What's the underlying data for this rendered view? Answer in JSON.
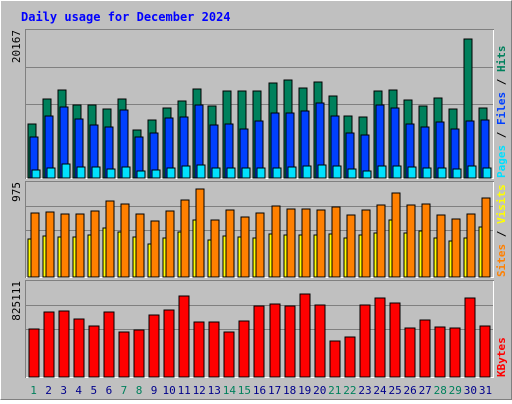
{
  "title": "Daily usage for December 2024",
  "colors": {
    "hits": "#00805c",
    "files": "#0040ff",
    "pages": "#00e0ff",
    "visits": "#ffff00",
    "sites": "#ff8000",
    "kbytes": "#ff0000",
    "background": "#c0c0c0",
    "label_normal": "#00008b",
    "label_weekend": "#00805c"
  },
  "panels": [
    {
      "id": "hits",
      "ymax_label": "20167",
      "ylim": [
        0,
        20167
      ],
      "side_labels": [
        {
          "text": "Pages",
          "color": "#00e0ff"
        },
        {
          "text": " / ",
          "color": "#000000"
        },
        {
          "text": "Files",
          "color": "#0040ff"
        },
        {
          "text": " / ",
          "color": "#000000"
        },
        {
          "text": "Hits",
          "color": "#00805c"
        }
      ]
    },
    {
      "id": "visits",
      "ymax_label": "975",
      "ylim": [
        0,
        975
      ],
      "side_labels": [
        {
          "text": "Sites",
          "color": "#ff8000"
        },
        {
          "text": " / ",
          "color": "#000000"
        },
        {
          "text": "Visits",
          "color": "#ffff00"
        }
      ]
    },
    {
      "id": "kbytes",
      "ymax_label": "825111",
      "ylim": [
        0,
        825111
      ],
      "side_labels": [
        {
          "text": "KBytes",
          "color": "#ff0000"
        }
      ]
    }
  ],
  "chart_data": {
    "type": "bar",
    "title": "Daily usage for December 2024",
    "categories": [
      "1",
      "2",
      "3",
      "4",
      "5",
      "6",
      "7",
      "8",
      "9",
      "10",
      "11",
      "12",
      "13",
      "14",
      "15",
      "16",
      "17",
      "18",
      "19",
      "20",
      "21",
      "22",
      "23",
      "24",
      "25",
      "26",
      "27",
      "28",
      "29",
      "30",
      "31"
    ],
    "weekend_days": [
      "1",
      "7",
      "8",
      "14",
      "15",
      "21",
      "22",
      "28",
      "29"
    ],
    "series": [
      {
        "name": "Hits",
        "panel": "hits",
        "values": [
          7300,
          10800,
          12000,
          10000,
          10000,
          9400,
          10800,
          6600,
          7900,
          9500,
          10500,
          12100,
          9800,
          11900,
          11900,
          11900,
          12900,
          13300,
          12300,
          13100,
          11200,
          8400,
          8300,
          11900,
          12000,
          10600,
          9800,
          10900,
          9400,
          19000,
          9500
        ]
      },
      {
        "name": "Files",
        "panel": "hits",
        "values": [
          5600,
          8400,
          9700,
          8000,
          7200,
          7000,
          9300,
          5600,
          6100,
          8200,
          8300,
          9900,
          7200,
          7400,
          6700,
          7700,
          8900,
          8900,
          9100,
          10200,
          8500,
          6100,
          5900,
          10000,
          9600,
          7300,
          6900,
          7600,
          6700,
          7800,
          7900
        ]
      },
      {
        "name": "Pages",
        "panel": "hits",
        "values": [
          1100,
          1400,
          1900,
          1500,
          1500,
          1200,
          1500,
          1000,
          1100,
          1300,
          1700,
          1800,
          1400,
          1300,
          1400,
          1300,
          1400,
          1500,
          1700,
          1800,
          1600,
          1200,
          1000,
          1600,
          1700,
          1500,
          1400,
          1300,
          1200,
          1700,
          1400
        ]
      },
      {
        "name": "Sites",
        "panel": "visits",
        "values": [
          660,
          670,
          650,
          650,
          680,
          780,
          750,
          650,
          570,
          680,
          790,
          900,
          590,
          690,
          620,
          660,
          730,
          700,
          700,
          690,
          720,
          640,
          690,
          740,
          860,
          740,
          750,
          640,
          600,
          650,
          810
        ]
      },
      {
        "name": "Visits",
        "panel": "visits",
        "values": [
          390,
          420,
          410,
          410,
          430,
          500,
          460,
          410,
          340,
          400,
          460,
          580,
          380,
          420,
          410,
          400,
          440,
          430,
          430,
          430,
          440,
          400,
          430,
          450,
          590,
          450,
          470,
          400,
          370,
          400,
          510
        ]
      },
      {
        "name": "KBytes",
        "panel": "kbytes",
        "values": [
          410000,
          560000,
          570000,
          500000,
          440000,
          560000,
          390000,
          400000,
          530000,
          580000,
          700000,
          470000,
          470000,
          390000,
          480000,
          610000,
          630000,
          610000,
          710000,
          620000,
          310000,
          340000,
          620000,
          680000,
          640000,
          420000,
          490000,
          430000,
          420000,
          680000,
          440000
        ]
      }
    ]
  }
}
